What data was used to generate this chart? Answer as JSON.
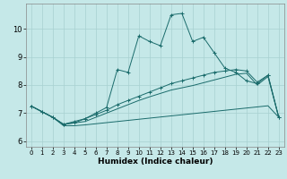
{
  "title": "",
  "xlabel": "Humidex (Indice chaleur)",
  "bg_color": "#c5e8e8",
  "grid_color": "#a8d0d0",
  "line_color": "#1a6b6b",
  "xlim": [
    -0.5,
    23.5
  ],
  "ylim": [
    5.8,
    10.9
  ],
  "yticks": [
    6,
    7,
    8,
    9,
    10
  ],
  "xticks": [
    0,
    1,
    2,
    3,
    4,
    5,
    6,
    7,
    8,
    9,
    10,
    11,
    12,
    13,
    14,
    15,
    16,
    17,
    18,
    19,
    20,
    21,
    22,
    23
  ],
  "line_main_x": [
    0,
    1,
    2,
    3,
    4,
    5,
    6,
    7,
    8,
    9,
    10,
    11,
    12,
    13,
    14,
    15,
    16,
    17,
    18,
    19,
    20,
    21,
    22,
    23
  ],
  "line_main_y": [
    7.25,
    7.05,
    6.85,
    6.6,
    6.65,
    6.8,
    7.0,
    7.2,
    8.55,
    8.45,
    9.75,
    9.55,
    9.4,
    10.5,
    10.55,
    9.55,
    9.7,
    9.15,
    8.6,
    8.45,
    8.15,
    8.05,
    8.35,
    6.85
  ],
  "line_upper_x": [
    0,
    1,
    2,
    3,
    4,
    5,
    6,
    7,
    8,
    9,
    10,
    11,
    12,
    13,
    14,
    15,
    16,
    17,
    18,
    19,
    20,
    21,
    22,
    23
  ],
  "line_upper_y": [
    7.25,
    7.05,
    6.85,
    6.6,
    6.7,
    6.8,
    6.95,
    7.1,
    7.3,
    7.45,
    7.6,
    7.75,
    7.9,
    8.05,
    8.15,
    8.25,
    8.35,
    8.45,
    8.5,
    8.55,
    8.5,
    8.1,
    8.35,
    6.85
  ],
  "line_mid_x": [
    0,
    1,
    2,
    3,
    4,
    5,
    6,
    7,
    8,
    9,
    10,
    11,
    12,
    13,
    14,
    15,
    16,
    17,
    18,
    19,
    20,
    21,
    22,
    23
  ],
  "line_mid_y": [
    7.25,
    7.05,
    6.85,
    6.6,
    6.65,
    6.7,
    6.85,
    7.0,
    7.15,
    7.3,
    7.45,
    7.58,
    7.7,
    7.82,
    7.9,
    7.98,
    8.08,
    8.18,
    8.28,
    8.38,
    8.42,
    8.0,
    8.3,
    6.85
  ],
  "line_lower_x": [
    0,
    1,
    2,
    3,
    4,
    5,
    6,
    7,
    8,
    9,
    10,
    11,
    12,
    13,
    14,
    15,
    16,
    17,
    18,
    19,
    20,
    21,
    22,
    23
  ],
  "line_lower_y": [
    7.25,
    7.05,
    6.85,
    6.55,
    6.55,
    6.58,
    6.62,
    6.66,
    6.7,
    6.74,
    6.78,
    6.82,
    6.86,
    6.9,
    6.94,
    6.98,
    7.02,
    7.06,
    7.1,
    7.14,
    7.18,
    7.22,
    7.26,
    6.85
  ]
}
